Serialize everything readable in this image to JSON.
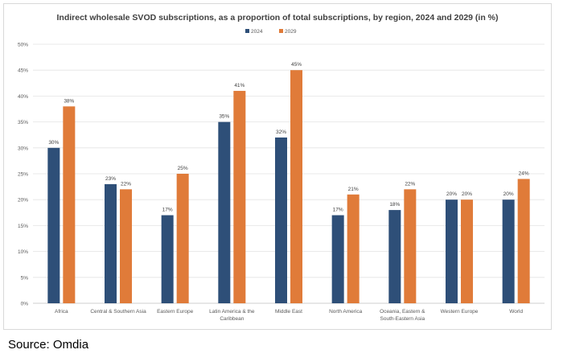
{
  "chart_data": {
    "type": "bar",
    "title": "Indirect wholesale SVOD subscriptions, as a proportion of total subscriptions, by region, 2024 and 2029 (in %)",
    "categories": [
      [
        "Africa"
      ],
      [
        "Central & Southern Asia"
      ],
      [
        "Eastern Europe"
      ],
      [
        "Latin America & the",
        "Caribbean"
      ],
      [
        "Middle East"
      ],
      [
        "North America"
      ],
      [
        "Oceania, Eastern &",
        "South-Eastern Asia"
      ],
      [
        "Western Europe"
      ],
      [
        "World"
      ]
    ],
    "series": [
      {
        "name": "2024",
        "color": "#2e4f78",
        "values": [
          30,
          23,
          17,
          35,
          32,
          17,
          18,
          20,
          20
        ],
        "labels": [
          "30%",
          "23%",
          "17%",
          "35%",
          "32%",
          "17%",
          "18%",
          "20%",
          "20%"
        ]
      },
      {
        "name": "2029",
        "color": "#e07b39",
        "values": [
          38,
          22,
          25,
          41,
          45,
          21,
          22,
          20,
          24
        ],
        "labels": [
          "38%",
          "22%",
          "25%",
          "41%",
          "45%",
          "21%",
          "22%",
          "20%",
          "24%"
        ]
      }
    ],
    "ylim": [
      0,
      50
    ],
    "yticks": [
      "0%",
      "5%",
      "10%",
      "15%",
      "20%",
      "25%",
      "30%",
      "35%",
      "40%",
      "45%",
      "50%"
    ],
    "grid": true,
    "legend": "top-center"
  },
  "source": "Source: Omdia"
}
